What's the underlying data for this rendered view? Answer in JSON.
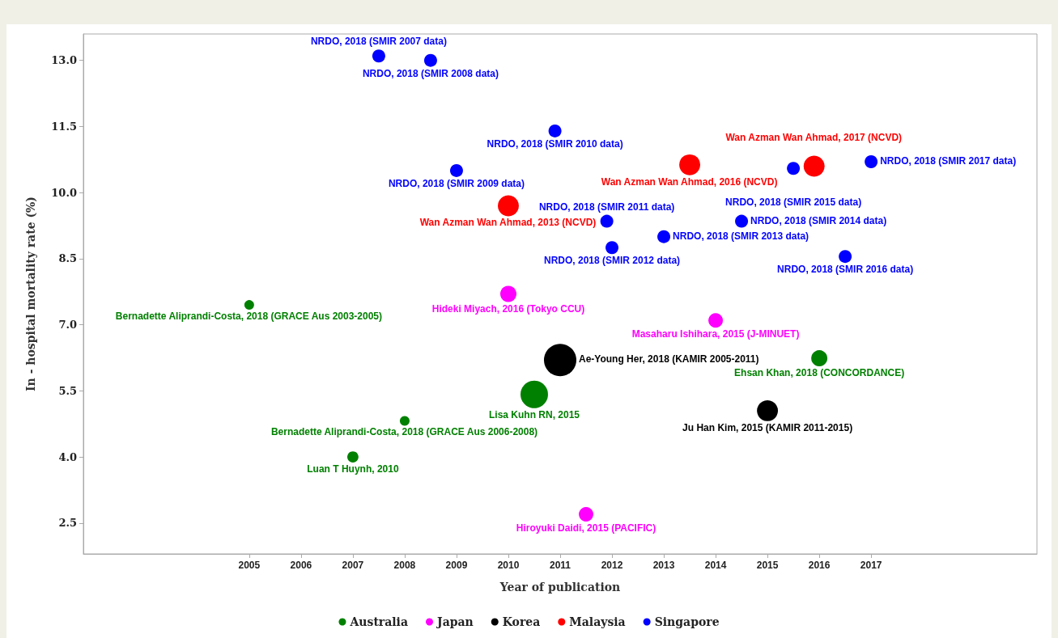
{
  "chart_data": {
    "type": "bubble",
    "xlabel": "Year of publication",
    "ylabel": "In - hospital mortality rate (%)",
    "xlim": [
      2001.8,
      2020.2
    ],
    "xticks": [
      2005,
      2006,
      2007,
      2008,
      2009,
      2010,
      2011,
      2012,
      2013,
      2014,
      2015,
      2016,
      2017
    ],
    "ylim": [
      1.8,
      13.6
    ],
    "yticks": [
      {
        "value": 2.5,
        "label": "2.5"
      },
      {
        "value": 4,
        "label": "4.0"
      },
      {
        "value": 5.5,
        "label": "5.5"
      },
      {
        "value": 7,
        "label": "7.0"
      },
      {
        "value": 8.5,
        "label": "8.5"
      },
      {
        "value": 10,
        "label": "10.0"
      },
      {
        "value": 11.5,
        "label": "11.5"
      },
      {
        "value": 13,
        "label": "13.0"
      }
    ],
    "grid": false,
    "legend": "bottom",
    "marker": "circle",
    "series": [
      {
        "name": "Australia",
        "color": "#008000",
        "x": [
          2005.0,
          2010.5,
          2008.0,
          2007.0,
          2016.0
        ],
        "values": [
          7.45,
          5.42,
          4.82,
          4.0,
          6.24
        ],
        "sizes": [
          0.09,
          0.72,
          0.09,
          0.12,
          0.25
        ]
      },
      {
        "name": "Japan",
        "color": "#ff00ff",
        "x": [
          2010.0,
          2014.0,
          2011.5
        ],
        "values": [
          7.7,
          7.1,
          2.7
        ],
        "sizes": [
          0.25,
          0.2,
          0.2
        ]
      },
      {
        "name": "Korea",
        "color": "#000000",
        "x": [
          2011.0,
          2015.0
        ],
        "values": [
          6.2,
          5.05
        ],
        "sizes": [
          1,
          0.42
        ]
      },
      {
        "name": "Malaysia",
        "color": "#ff0000",
        "x": [
          2010.0,
          2013.5,
          2015.9
        ],
        "values": [
          9.7,
          10.63,
          10.6
        ],
        "sizes": [
          0.42,
          0.42,
          0.42
        ]
      },
      {
        "name": "Singapore",
        "color": "#0000ff",
        "x": [
          2007.5,
          2008.5,
          2009.0,
          2010.9,
          2011.9,
          2012.0,
          2013.0,
          2014.5,
          2015.5,
          2016.5,
          2017.0
        ],
        "values": [
          13.1,
          13.0,
          10.5,
          11.4,
          9.35,
          8.75,
          9.0,
          9.35,
          10.55,
          8.55,
          10.7
        ],
        "sizes": [
          0.16,
          0.16,
          0.16,
          0.16,
          0.16,
          0.16,
          0.16,
          0.16,
          0.16,
          0.16,
          0.16
        ]
      }
    ],
    "annotations": [
      {
        "text": "Bernadette Aliprandi-Costa, 2018 (GRACE Aus 2003-2005)",
        "x": 2005.0,
        "y": 7.45
      },
      {
        "text": "Lisa Kuhn RN, 2015",
        "x": 2010.5,
        "y": 5.42
      },
      {
        "text": "Bernadette Aliprandi-Costa, 2018 (GRACE Aus 2006-2008)",
        "x": 2008.0,
        "y": 4.82
      },
      {
        "text": "Luan T Huynh, 2010",
        "x": 2007.0,
        "y": 4.0
      },
      {
        "text": "Ehsan Khan, 2018 (CONCORDANCE)",
        "x": 2016.0,
        "y": 6.24
      },
      {
        "text": "Hideki Miyach, 2016 (Tokyo CCU)",
        "x": 2010.0,
        "y": 7.7
      },
      {
        "text": "Masaharu Ishihara, 2015 (J-MINUET)",
        "x": 2014.0,
        "y": 7.1
      },
      {
        "text": "Hiroyuki Daidi, 2015 (PACIFIC)",
        "x": 2011.5,
        "y": 2.7
      },
      {
        "text": "Ae-Young Her, 2018 (KAMIR 2005-2011)",
        "x": 2011.0,
        "y": 6.2
      },
      {
        "text": "Ju Han Kim, 2015 (KAMIR 2011-2015)",
        "x": 2015.0,
        "y": 5.05
      },
      {
        "text": "Wan Azman Wan Ahmad, 2013 (NCVD)",
        "x": 2010.0,
        "y": 9.7
      },
      {
        "text": "Wan Azman Wan Ahmad, 2016 (NCVD)",
        "x": 2013.5,
        "y": 10.63
      },
      {
        "text": "Wan Azman Wan Ahmad, 2017 (NCVD)",
        "x": 2015.9,
        "y": 10.6
      },
      {
        "text": "NRDO, 2018 (SMIR 2007 data)",
        "x": 2007.5,
        "y": 13.1
      },
      {
        "text": "NRDO, 2018 (SMIR 2008 data)",
        "x": 2008.5,
        "y": 13.0
      },
      {
        "text": "NRDO, 2018 (SMIR 2009 data)",
        "x": 2009.0,
        "y": 10.5
      },
      {
        "text": "NRDO, 2018 (SMIR 2010 data)",
        "x": 2010.9,
        "y": 11.4
      },
      {
        "text": "NRDO, 2018 (SMIR 2011 data)",
        "x": 2011.9,
        "y": 9.35
      },
      {
        "text": "NRDO, 2018 (SMIR 2012 data)",
        "x": 2012.0,
        "y": 8.75
      },
      {
        "text": "NRDO, 2018 (SMIR 2013 data)",
        "x": 2013.0,
        "y": 9.0
      },
      {
        "text": "NRDO, 2018 (SMIR 2014 data)",
        "x": 2014.5,
        "y": 9.35
      },
      {
        "text": "NRDO, 2018 (SMIR 2015 data)",
        "x": 2015.5,
        "y": 10.55
      },
      {
        "text": "NRDO, 2018 (SMIR 2016 data)",
        "x": 2016.5,
        "y": 8.55
      },
      {
        "text": "NRDO, 2018 (SMIR 2017 data)",
        "x": 2017.0,
        "y": 10.7
      }
    ]
  }
}
